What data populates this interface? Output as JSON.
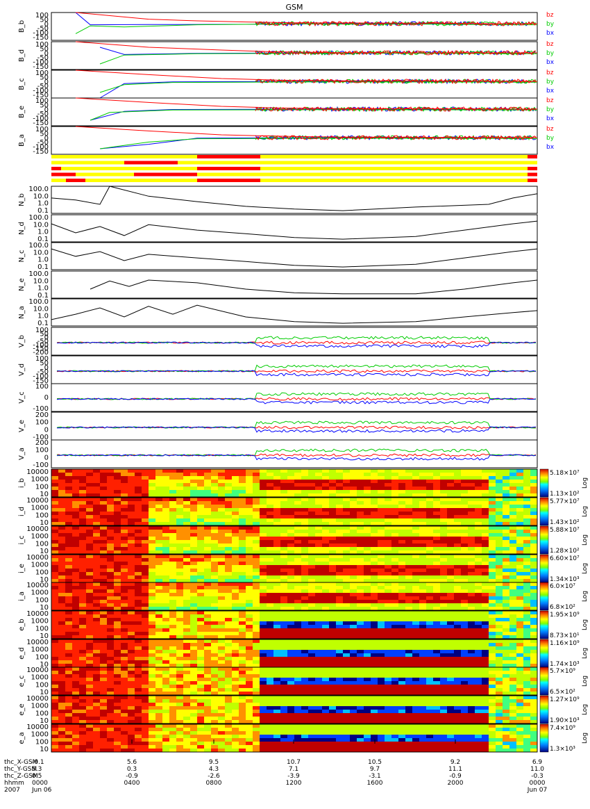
{
  "title": "GSM",
  "colors": {
    "bx": "#0000ff",
    "by": "#00cc00",
    "bz": "#ff0000",
    "bar_bg": "#ffff00",
    "bar_on": "#ff0000",
    "line": "#000000"
  },
  "colorbar_label": "Log",
  "chart_data": [
    {
      "type": "line",
      "panel": "B_b",
      "ytick_labels": [
        "100",
        "50",
        "0",
        "-50",
        "-100",
        "-150"
      ],
      "ylim": [
        -150,
        100
      ],
      "series": [
        {
          "name": "bz"
        },
        {
          "name": "by"
        },
        {
          "name": "bx"
        }
      ],
      "points": {
        "bz": [
          [
            0.05,
            100
          ],
          [
            0.2,
            40
          ],
          [
            0.3,
            25
          ],
          [
            0.4,
            15
          ],
          [
            0.5,
            8
          ],
          [
            0.6,
            6
          ],
          [
            0.7,
            5
          ],
          [
            0.8,
            4
          ],
          [
            0.9,
            0
          ],
          [
            1,
            0
          ]
        ],
        "by": [
          [
            0.05,
            -90
          ],
          [
            0.08,
            -20
          ],
          [
            0.15,
            -30
          ],
          [
            0.3,
            -10
          ],
          [
            0.5,
            -2
          ],
          [
            0.6,
            -5
          ],
          [
            0.8,
            -5
          ],
          [
            0.9,
            -10
          ],
          [
            1,
            -10
          ]
        ],
        "bx": [
          [
            0.05,
            100
          ],
          [
            0.08,
            -10
          ],
          [
            0.2,
            -8
          ],
          [
            0.5,
            -5
          ],
          [
            0.6,
            2
          ],
          [
            0.8,
            0
          ],
          [
            1,
            0
          ]
        ]
      }
    },
    {
      "type": "line",
      "panel": "B_d",
      "ytick_labels": [
        "100",
        "50",
        "0",
        "-50",
        "-100",
        "-150"
      ],
      "ylim": [
        -150,
        100
      ],
      "series": [
        {
          "name": "bz"
        },
        {
          "name": "by"
        },
        {
          "name": "bx"
        }
      ],
      "points": {
        "bz": [
          [
            0.05,
            100
          ],
          [
            0.2,
            50
          ],
          [
            0.35,
            25
          ],
          [
            0.45,
            10
          ],
          [
            0.6,
            2
          ],
          [
            0.8,
            0
          ],
          [
            1,
            0
          ]
        ],
        "by": [
          [
            0.1,
            -100
          ],
          [
            0.15,
            -20
          ],
          [
            0.3,
            -8
          ],
          [
            0.6,
            -3
          ],
          [
            0.8,
            -5
          ],
          [
            1,
            -8
          ]
        ],
        "bx": [
          [
            0.1,
            50
          ],
          [
            0.15,
            -15
          ],
          [
            0.3,
            -5
          ],
          [
            0.6,
            0
          ],
          [
            1,
            0
          ]
        ]
      }
    },
    {
      "type": "line",
      "panel": "B_c",
      "ytick_labels": [
        "100",
        "50",
        "0",
        "-50",
        "-100",
        "-150"
      ],
      "ylim": [
        -150,
        100
      ],
      "series": [
        {
          "name": "bz"
        },
        {
          "name": "by"
        },
        {
          "name": "bx"
        }
      ],
      "points": {
        "bz": [
          [
            0.05,
            100
          ],
          [
            0.2,
            60
          ],
          [
            0.35,
            25
          ],
          [
            0.47,
            10
          ],
          [
            0.6,
            5
          ],
          [
            0.8,
            3
          ],
          [
            1,
            0
          ]
        ],
        "by": [
          [
            0.1,
            -100
          ],
          [
            0.15,
            -30
          ],
          [
            0.25,
            -10
          ],
          [
            0.6,
            -5
          ],
          [
            1,
            -8
          ]
        ],
        "bx": [
          [
            0.1,
            -150
          ],
          [
            0.15,
            -20
          ],
          [
            0.25,
            -5
          ],
          [
            0.6,
            0
          ],
          [
            1,
            0
          ]
        ]
      }
    },
    {
      "type": "line",
      "panel": "B_e",
      "ytick_labels": [
        "100",
        "50",
        "0",
        "-50",
        "-100",
        "-150"
      ],
      "ylim": [
        -150,
        100
      ],
      "series": [
        {
          "name": "bz"
        },
        {
          "name": "by"
        },
        {
          "name": "bx"
        }
      ],
      "points": {
        "bz": [
          [
            0.05,
            100
          ],
          [
            0.2,
            60
          ],
          [
            0.35,
            25
          ],
          [
            0.47,
            10
          ],
          [
            0.6,
            5
          ],
          [
            0.8,
            3
          ],
          [
            1,
            0
          ]
        ],
        "by": [
          [
            0.08,
            -100
          ],
          [
            0.12,
            -30
          ],
          [
            0.25,
            -8
          ],
          [
            0.6,
            -5
          ],
          [
            1,
            -8
          ]
        ],
        "bx": [
          [
            0.08,
            -100
          ],
          [
            0.15,
            -20
          ],
          [
            0.25,
            -3
          ],
          [
            0.6,
            0
          ],
          [
            1,
            0
          ]
        ]
      }
    },
    {
      "type": "line",
      "panel": "B_a",
      "ytick_labels": [
        "100",
        "50",
        "0",
        "-50",
        "-100",
        "-150"
      ],
      "ylim": [
        -150,
        100
      ],
      "series": [
        {
          "name": "bz"
        },
        {
          "name": "by"
        },
        {
          "name": "bx"
        }
      ],
      "points": {
        "bz": [
          [
            0.05,
            100
          ],
          [
            0.2,
            60
          ],
          [
            0.35,
            25
          ],
          [
            0.5,
            10
          ],
          [
            0.6,
            5
          ],
          [
            1,
            0
          ]
        ],
        "by": [
          [
            0.1,
            -100
          ],
          [
            0.2,
            -40
          ],
          [
            0.3,
            -10
          ],
          [
            0.6,
            -5
          ],
          [
            1,
            -8
          ]
        ],
        "bx": [
          [
            0.1,
            -100
          ],
          [
            0.2,
            -60
          ],
          [
            0.3,
            -5
          ],
          [
            0.6,
            0
          ],
          [
            1,
            0
          ]
        ]
      }
    },
    {
      "type": "line",
      "panel": "N_b",
      "ytick_labels": [
        "100.0",
        "10.0",
        "1.0",
        "0.1"
      ],
      "ylim": [
        0.1,
        100
      ],
      "log": true,
      "series": [
        {
          "name": "N_b",
          "values": [
            [
              0.0,
              5
            ],
            [
              0.05,
              3
            ],
            [
              0.1,
              1
            ],
            [
              0.12,
              100
            ],
            [
              0.2,
              8
            ],
            [
              0.3,
              2
            ],
            [
              0.4,
              0.6
            ],
            [
              0.5,
              0.3
            ],
            [
              0.6,
              0.2
            ],
            [
              0.75,
              0.5
            ],
            [
              0.9,
              1
            ],
            [
              0.95,
              5
            ],
            [
              1,
              15
            ]
          ]
        }
      ]
    },
    {
      "type": "line",
      "panel": "N_d",
      "ytick_labels": [
        "100.0",
        "10.0",
        "1.0",
        "0.1"
      ],
      "ylim": [
        0.1,
        100
      ],
      "log": true,
      "series": [
        {
          "name": "N_d",
          "values": [
            [
              0.0,
              10
            ],
            [
              0.05,
              1
            ],
            [
              0.1,
              5
            ],
            [
              0.15,
              0.5
            ],
            [
              0.2,
              8
            ],
            [
              0.3,
              2
            ],
            [
              0.4,
              0.8
            ],
            [
              0.5,
              0.3
            ],
            [
              0.6,
              0.2
            ],
            [
              0.75,
              0.4
            ],
            [
              0.85,
              2
            ],
            [
              0.95,
              10
            ],
            [
              1,
              20
            ]
          ]
        }
      ]
    },
    {
      "type": "line",
      "panel": "N_c",
      "ytick_labels": [
        "100.0",
        "10.0",
        "1.0",
        "0.1"
      ],
      "ylim": [
        0.1,
        100
      ],
      "log": true,
      "series": [
        {
          "name": "N_c",
          "values": [
            [
              0.0,
              20
            ],
            [
              0.05,
              3
            ],
            [
              0.1,
              10
            ],
            [
              0.15,
              1
            ],
            [
              0.2,
              5
            ],
            [
              0.3,
              2
            ],
            [
              0.4,
              0.8
            ],
            [
              0.5,
              0.3
            ],
            [
              0.6,
              0.2
            ],
            [
              0.75,
              0.4
            ],
            [
              0.85,
              2
            ],
            [
              0.95,
              10
            ],
            [
              1,
              20
            ]
          ]
        }
      ]
    },
    {
      "type": "line",
      "panel": "N_e",
      "ytick_labels": [
        "100.0",
        "10.0",
        "1.0",
        "0.1"
      ],
      "ylim": [
        0.1,
        100
      ],
      "log": true,
      "series": [
        {
          "name": "N_e",
          "values": [
            [
              0.08,
              1
            ],
            [
              0.12,
              8
            ],
            [
              0.16,
              2
            ],
            [
              0.2,
              10
            ],
            [
              0.3,
              5
            ],
            [
              0.4,
              1
            ],
            [
              0.5,
              0.4
            ],
            [
              0.6,
              0.3
            ],
            [
              0.75,
              0.3
            ],
            [
              0.85,
              1
            ],
            [
              0.95,
              5
            ],
            [
              1,
              10
            ]
          ]
        }
      ]
    },
    {
      "type": "line",
      "panel": "N_a",
      "ytick_labels": [
        "100.0",
        "10.0",
        "1.0",
        "0.1"
      ],
      "ylim": [
        0.1,
        100
      ],
      "log": true,
      "series": [
        {
          "name": "N_a",
          "values": [
            [
              0.0,
              0.5
            ],
            [
              0.05,
              2
            ],
            [
              0.1,
              10
            ],
            [
              0.15,
              1
            ],
            [
              0.2,
              15
            ],
            [
              0.25,
              2
            ],
            [
              0.3,
              20
            ],
            [
              0.4,
              1
            ],
            [
              0.5,
              0.3
            ],
            [
              0.6,
              0.2
            ],
            [
              0.75,
              0.3
            ],
            [
              0.85,
              1
            ],
            [
              0.95,
              3
            ],
            [
              1,
              5
            ]
          ]
        }
      ]
    },
    {
      "type": "line",
      "panel": "V_b",
      "ytick_labels": [
        "100",
        "50",
        "0",
        "-50",
        "-100",
        "-150",
        "-200"
      ],
      "ylim": [
        -200,
        100
      ]
    },
    {
      "type": "line",
      "panel": "V_d",
      "ytick_labels": [
        "100",
        "50",
        "0",
        "-50",
        "-100",
        "-150"
      ],
      "ylim": [
        -150,
        100
      ]
    },
    {
      "type": "line",
      "panel": "V_c",
      "ytick_labels": [
        "100",
        "0",
        "-100"
      ],
      "ylim": [
        -150,
        150
      ]
    },
    {
      "type": "line",
      "panel": "V_e",
      "ytick_labels": [
        "200",
        "100",
        "0",
        "-100"
      ],
      "ylim": [
        -150,
        250
      ]
    },
    {
      "type": "line",
      "panel": "V_a",
      "ytick_labels": [
        "200",
        "100",
        "0",
        "-100"
      ],
      "ylim": [
        -150,
        250
      ]
    },
    {
      "type": "heatmap",
      "panel": "i_b",
      "ytick_labels": [
        "10000",
        "1000",
        "100",
        "10"
      ],
      "cbar_max": "5.18×10⁷",
      "cbar_min": "1.13×10²"
    },
    {
      "type": "heatmap",
      "panel": "i_d",
      "ytick_labels": [
        "10000",
        "1000",
        "100",
        "10"
      ],
      "cbar_max": "5.77×10⁷",
      "cbar_min": "1.43×10²"
    },
    {
      "type": "heatmap",
      "panel": "i_c",
      "ytick_labels": [
        "10000",
        "1000",
        "100",
        "10"
      ],
      "cbar_max": "5.88×10⁷",
      "cbar_min": "1.28×10²"
    },
    {
      "type": "heatmap",
      "panel": "i_e",
      "ytick_labels": [
        "10000",
        "1000",
        "100",
        "10"
      ],
      "cbar_max": "6.60×10⁷",
      "cbar_min": "1.34×10³"
    },
    {
      "type": "heatmap",
      "panel": "i_a",
      "ytick_labels": [
        "10000",
        "1000",
        "100",
        "10"
      ],
      "cbar_max": "6.0×10⁷",
      "cbar_min": "6.8×10²"
    },
    {
      "type": "heatmap",
      "panel": "e_b",
      "ytick_labels": [
        "10000",
        "1000",
        "100",
        "10"
      ],
      "cbar_max": "1.95×10⁹",
      "cbar_min": "8.73×10¹"
    },
    {
      "type": "heatmap",
      "panel": "e_d",
      "ytick_labels": [
        "10000",
        "1000",
        "100",
        "10"
      ],
      "cbar_max": "1.16×10⁹",
      "cbar_min": "1.74×10³"
    },
    {
      "type": "heatmap",
      "panel": "e_c",
      "ytick_labels": [
        "10000",
        "1000",
        "100",
        "10"
      ],
      "cbar_max": "5.7×10⁹",
      "cbar_min": "6.5×10²"
    },
    {
      "type": "heatmap",
      "panel": "e_e",
      "ytick_labels": [
        "10000",
        "1000",
        "100",
        "10"
      ],
      "cbar_max": "1.27×10⁹",
      "cbar_min": "1.90×10³"
    },
    {
      "type": "heatmap",
      "panel": "e_a",
      "ytick_labels": [
        "10000",
        "1000",
        "100",
        "10"
      ],
      "cbar_max": "7.4×10⁹",
      "cbar_min": "1.3×10³"
    }
  ],
  "mode_bars": [
    {
      "segments": [
        [
          0.3,
          0.43
        ],
        [
          0.98,
          1.0
        ]
      ]
    },
    {
      "segments": [
        [
          0.15,
          0.26
        ]
      ]
    },
    {
      "segments": [
        [
          0.0,
          0.02
        ],
        [
          0.3,
          0.43
        ],
        [
          0.98,
          1.0
        ]
      ]
    },
    {
      "segments": [
        [
          0.0,
          0.05
        ],
        [
          0.17,
          0.3
        ],
        [
          0.98,
          1.0
        ]
      ]
    },
    {
      "segments": [
        [
          0.03,
          0.07
        ],
        [
          0.3,
          0.43
        ],
        [
          0.98,
          1.0
        ]
      ]
    }
  ],
  "x_axis": {
    "row_labels": [
      "thc_X-GSM",
      "thc_Y-GSM",
      "thc_Z-GSM",
      "hhmm",
      "2007"
    ],
    "first_col": [
      "-0.1",
      "5.3",
      "0.5",
      "0000",
      "Jun 06"
    ],
    "columns": [
      [
        "5.6",
        "0.3",
        "-0.9",
        "0400"
      ],
      [
        "9.5",
        "4.3",
        "-2.6",
        "0800"
      ],
      [
        "10.7",
        "7.1",
        "-3.9",
        "1200"
      ],
      [
        "10.5",
        "9.7",
        "-3.1",
        "1600"
      ],
      [
        "9.2",
        "11.1",
        "-0.9",
        "2000"
      ],
      [
        "6.9",
        "11.0",
        "-0.3",
        "0000",
        "Jun 07"
      ]
    ]
  }
}
